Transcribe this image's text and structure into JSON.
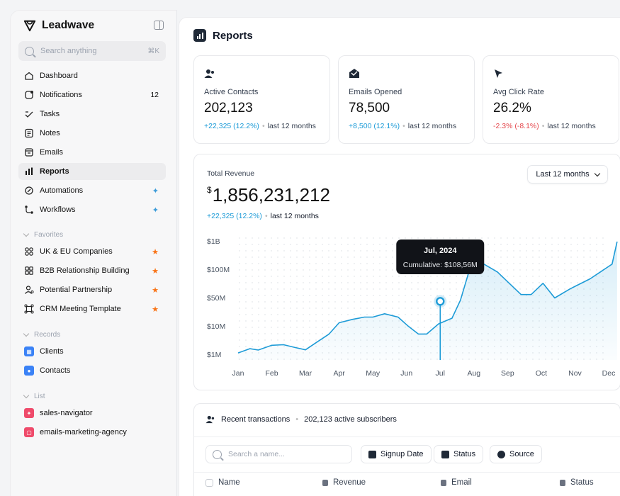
{
  "app": {
    "name": "Leadwave"
  },
  "search": {
    "placeholder": "Search anything",
    "shortcut": "⌘K"
  },
  "nav": [
    {
      "label": "Dashboard",
      "icon": "home-icon"
    },
    {
      "label": "Notifications",
      "icon": "bell-icon",
      "badge": "12"
    },
    {
      "label": "Tasks",
      "icon": "check-icon"
    },
    {
      "label": "Notes",
      "icon": "note-icon"
    },
    {
      "label": "Emails",
      "icon": "inbox-icon"
    },
    {
      "label": "Reports",
      "icon": "bar-chart-icon",
      "active": true
    },
    {
      "label": "Automations",
      "icon": "automation-icon",
      "sparkle": true
    },
    {
      "label": "Workflows",
      "icon": "workflow-icon",
      "sparkle": true
    }
  ],
  "favorites": {
    "label": "Favorites",
    "items": [
      {
        "label": "UK & EU Companies"
      },
      {
        "label": "B2B Relationship Building"
      },
      {
        "label": "Potential Partnership"
      },
      {
        "label": "CRM Meeting Template"
      }
    ]
  },
  "records": {
    "label": "Records",
    "items": [
      {
        "label": "Clients",
        "color": "#3b82f6"
      },
      {
        "label": "Contacts",
        "color": "#3b82f6"
      }
    ]
  },
  "list": {
    "label": "List",
    "items": [
      {
        "label": "sales-navigator",
        "color": "#ef4b6b"
      },
      {
        "label": "emails-marketing-agency",
        "color": "#ef4b6b"
      }
    ]
  },
  "page": {
    "title": "Reports"
  },
  "stats": [
    {
      "label": "Active Contacts",
      "value": "202,123",
      "delta": "+22,325 (12.2%)",
      "trend": "up",
      "period": "last 12 months",
      "icon": "contacts-icon"
    },
    {
      "label": "Emails Opened",
      "value": "78,500",
      "delta": "+8,500 (12.1%)",
      "trend": "up",
      "period": "last 12 months",
      "icon": "mail-open-icon"
    },
    {
      "label": "Avg Click Rate",
      "value": "26.2%",
      "delta": "-2.3% (-8.1%)",
      "trend": "down",
      "period": "last 12 months",
      "icon": "cursor-icon"
    }
  ],
  "revenue": {
    "label": "Total Revenue",
    "currency": "$",
    "value": "1,856,231,212",
    "delta": "+22,325 (12.2%)",
    "period": "last 12 months",
    "period_select": "Last 12 months"
  },
  "chart_data": {
    "type": "line",
    "categories": [
      "Jan",
      "Feb",
      "Mar",
      "Apr",
      "May",
      "Jun",
      "Jul",
      "Aug",
      "Sep",
      "Oct",
      "Nov",
      "Dec"
    ],
    "y_ticks": [
      "$1B",
      "$100M",
      "$50M",
      "$10M",
      "$1M"
    ],
    "y_tick_levels": [
      1,
      0.75,
      0.5,
      0.25,
      0
    ],
    "x": [
      0,
      0.35,
      0.6,
      1,
      1.35,
      1.7,
      2,
      2.3,
      2.7,
      3,
      3.4,
      3.75,
      4,
      4.35,
      4.75,
      5.05,
      5.35,
      5.6,
      5.95,
      6.35,
      6.6,
      6.95,
      7.3,
      7.7,
      8.05,
      8.4,
      8.7,
      9.05,
      9.4,
      9.85,
      10.05,
      10.45,
      10.75,
      11.0,
      11.1,
      11.25
    ],
    "values": [
      0.62,
      1.0,
      0.88,
      1.3,
      1.35,
      1.1,
      0.9,
      1.5,
      2.3,
      3.3,
      3.6,
      3.8,
      3.8,
      4.1,
      3.8,
      3.0,
      2.3,
      2.3,
      3.2,
      3.7,
      5.3,
      8.8,
      8.5,
      7.8,
      6.8,
      5.8,
      5.8,
      6.8,
      5.5,
      6.3,
      6.6,
      7.2,
      7.8,
      8.3,
      8.5,
      10.5
    ],
    "ylim": [
      0,
      11
    ],
    "tooltip": {
      "title": "Jul, 2024",
      "text": "Cumulative: $108,56M",
      "x": 6.0,
      "y": 5.2
    }
  },
  "transactions": {
    "title": "Recent transactions",
    "subscribers": "202,123 active subscribers",
    "search_placeholder": "Search a name...",
    "filters": [
      "Signup Date",
      "Status",
      "Source"
    ],
    "columns": [
      "Name",
      "Revenue",
      "Email",
      "Status"
    ]
  },
  "colors": {
    "accent": "#1d9bd7",
    "negative": "#e5484d",
    "star": "#f97316"
  }
}
